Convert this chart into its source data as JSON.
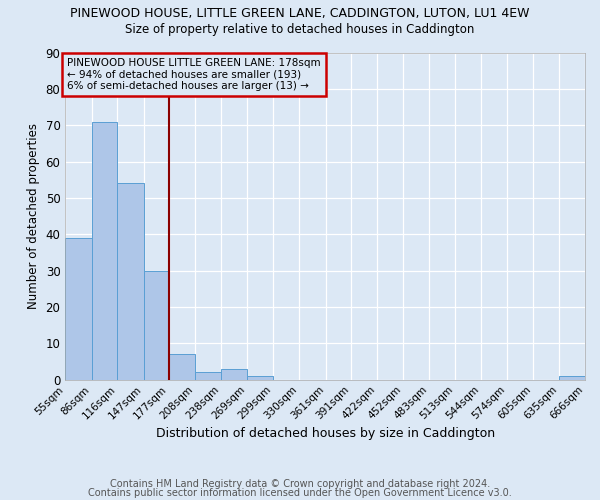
{
  "title1": "PINEWOOD HOUSE, LITTLE GREEN LANE, CADDINGTON, LUTON, LU1 4EW",
  "title2": "Size of property relative to detached houses in Caddington",
  "xlabel": "Distribution of detached houses by size in Caddington",
  "ylabel": "Number of detached properties",
  "footer1": "Contains HM Land Registry data © Crown copyright and database right 2024.",
  "footer2": "Contains public sector information licensed under the Open Government Licence v3.0.",
  "bar_edges": [
    55,
    86,
    116,
    147,
    177,
    208,
    238,
    269,
    299,
    330,
    361,
    391,
    422,
    452,
    483,
    513,
    544,
    574,
    605,
    635,
    666
  ],
  "bar_heights": [
    39,
    71,
    54,
    30,
    7,
    2,
    3,
    1,
    0,
    0,
    0,
    0,
    0,
    0,
    0,
    0,
    0,
    0,
    0,
    1
  ],
  "bar_color": "#aec6e8",
  "bar_edgecolor": "#5a9fd4",
  "bg_color": "#dce8f5",
  "property_line_x": 177,
  "property_line_color": "#8b0000",
  "annotation_title": "PINEWOOD HOUSE LITTLE GREEN LANE: 178sqm",
  "annotation_line1": "← 94% of detached houses are smaller (193)",
  "annotation_line2": "6% of semi-detached houses are larger (13) →",
  "annotation_box_color": "#cc0000",
  "ylim": [
    0,
    90
  ],
  "yticks": [
    0,
    10,
    20,
    30,
    40,
    50,
    60,
    70,
    80,
    90
  ],
  "tick_labels": [
    "55sqm",
    "86sqm",
    "116sqm",
    "147sqm",
    "177sqm",
    "208sqm",
    "238sqm",
    "269sqm",
    "299sqm",
    "330sqm",
    "361sqm",
    "391sqm",
    "422sqm",
    "452sqm",
    "483sqm",
    "513sqm",
    "544sqm",
    "574sqm",
    "605sqm",
    "635sqm",
    "666sqm"
  ]
}
